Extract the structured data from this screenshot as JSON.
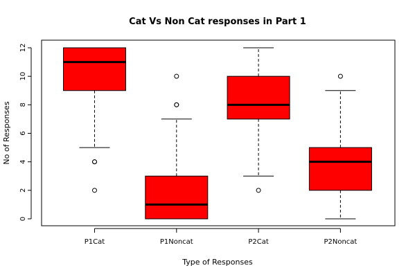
{
  "chart_data": {
    "type": "box",
    "title": "Cat Vs Non Cat responses in Part 1",
    "xlabel": "Type of Responses",
    "ylabel": "No of Responses",
    "ylim": [
      0,
      12
    ],
    "yticks": [
      "0",
      "2",
      "4",
      "6",
      "8",
      "10",
      "12"
    ],
    "categories": [
      "P1Cat",
      "P1Noncat",
      "P2Cat",
      "P2Noncat"
    ],
    "box_color": "#ff0000",
    "boxes": [
      {
        "name": "P1Cat",
        "whisker_low": 5,
        "q1": 9,
        "median": 11,
        "q3": 12,
        "whisker_high": 12,
        "outliers": [
          4,
          4,
          2
        ]
      },
      {
        "name": "P1Noncat",
        "whisker_low": 0,
        "q1": 0,
        "median": 1,
        "q3": 3,
        "whisker_high": 7,
        "outliers": [
          8,
          8,
          10
        ]
      },
      {
        "name": "P2Cat",
        "whisker_low": 3,
        "q1": 7,
        "median": 8,
        "q3": 10,
        "whisker_high": 12,
        "outliers": [
          2
        ]
      },
      {
        "name": "P2Noncat",
        "whisker_low": 0,
        "q1": 2,
        "median": 4,
        "q3": 5,
        "whisker_high": 9,
        "outliers": [
          10
        ]
      }
    ]
  }
}
